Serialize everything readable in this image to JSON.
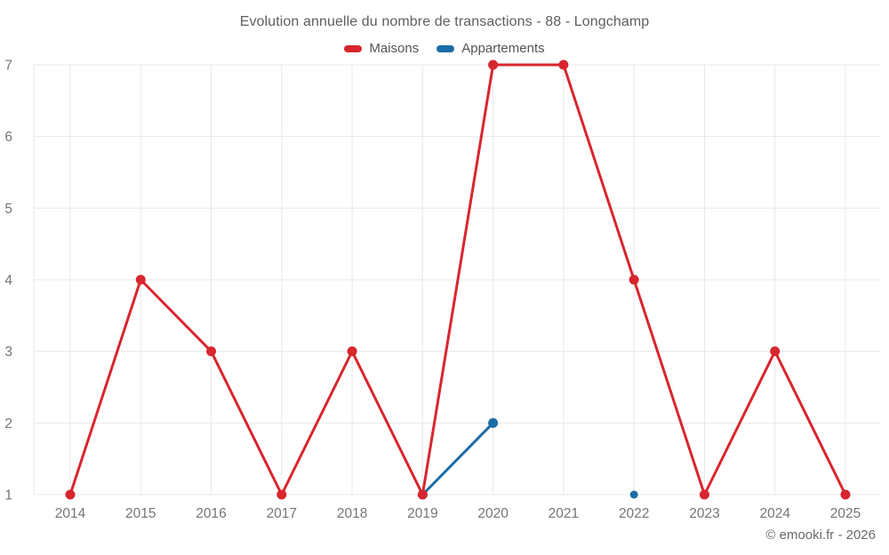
{
  "chart": {
    "title": "Evolution annuelle du nombre de transactions - 88 - Longchamp"
  },
  "chart_data": {
    "type": "line",
    "title": "Evolution annuelle du nombre de transactions - 88 - Longchamp",
    "categories": [
      "2014",
      "2015",
      "2016",
      "2017",
      "2018",
      "2019",
      "2020",
      "2021",
      "2022",
      "2023",
      "2024",
      "2025"
    ],
    "xlabel": "",
    "ylabel": "",
    "ylim": [
      1,
      7
    ],
    "yticks": [
      1,
      2,
      3,
      4,
      5,
      6,
      7
    ],
    "grid": true,
    "legend_position": "top",
    "series": [
      {
        "name": "Maisons",
        "color": "#d8262e",
        "values": [
          1,
          4,
          3,
          1,
          3,
          1,
          7,
          7,
          4,
          1,
          3,
          1
        ]
      },
      {
        "name": "Appartements",
        "color": "#1a6da6",
        "values": [
          null,
          null,
          null,
          null,
          null,
          1,
          2,
          null,
          1,
          null,
          null,
          null
        ]
      }
    ],
    "colors": {
      "grid": "#e8e8e8",
      "axis_text": "#757575"
    }
  },
  "footer": {
    "copyright": "© emooki.fr - 2026"
  }
}
